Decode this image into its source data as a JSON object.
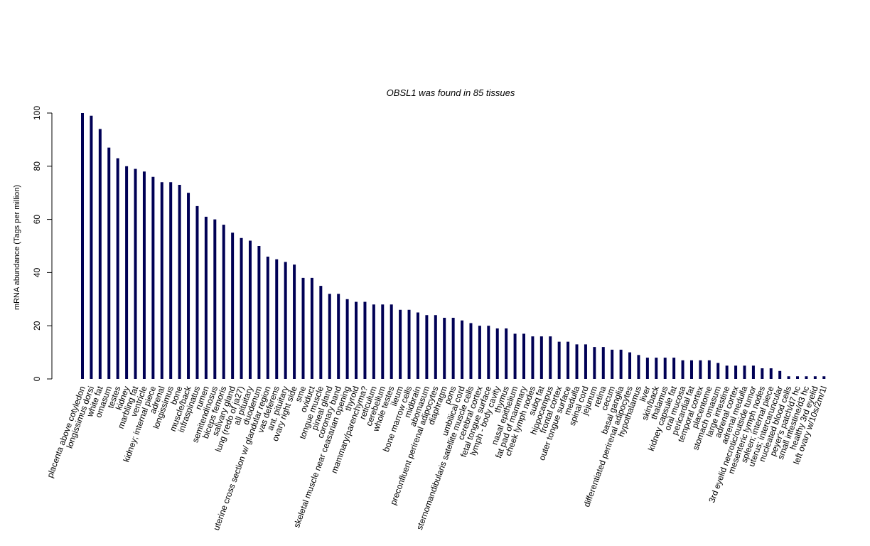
{
  "chart_data": {
    "type": "bar",
    "title": "OBSL1  was found in  85  tissues",
    "xlabel": "",
    "ylabel": "mRNA abundance (Tags per million)",
    "ylim": [
      0,
      100
    ],
    "yticks": [
      0,
      20,
      40,
      60,
      80,
      100
    ],
    "bar_color": "#000055",
    "categories": [
      "placenta above cotyledon",
      "longissimus dorsi",
      "white fat",
      "omasum",
      "testes",
      "kidney",
      "marbling fat",
      "ventricle",
      "kidney; internal piece",
      "adrenal",
      "longissimus",
      "bone",
      "muscle/back",
      "infraspinatus",
      "rumen",
      "semitendinosus",
      "biceps femoris",
      "salivary gland",
      "lung (redo of ja27)",
      "all pituitary",
      "duodenum",
      "uterine cross section w/ glandular region",
      "vas deferens",
      "ant. pituitary",
      "ovary right side",
      "sme",
      "oviduct",
      "tongue muscle",
      "pineal gland",
      "coronary band",
      "skeletal muscle near ceasarian opening",
      "thyroid",
      "mammary/parenchyma?",
      "reticulum",
      "cerebellum",
      "whole testes",
      "ileum",
      "bone marrow cells",
      "midbrain",
      "abomasum",
      "preconfluent perirenal adipocytes",
      "diaphragm",
      "pons",
      "umbilical cord",
      "sternomandibularis satellite muscle cells",
      "cerebral cortex",
      "fetal tongue surface",
      "lymph - body cavity",
      "thymus",
      "nasal epithelium",
      "fat pad of mammary",
      "cheek lymph nodes",
      "subq fat",
      "hippocampus",
      "frontal cortex",
      "outer tongue surface",
      "medulla",
      "spinal cord",
      "jejunum",
      "retina",
      "cecum",
      "basal ganglia",
      "differentiated perirenal adipocytes",
      "hypothalamus",
      "liver",
      "skin/back",
      "thalamus",
      "kidney capsule fat",
      "oral mucosa",
      "pericardial fat",
      "temporal cortex",
      "placentome",
      "stomach omasum",
      "large intestine",
      "adrenal cortex",
      "adrenal medulla",
      "3rd eyelid necrotic/outside tumor",
      "mesenteric lymph nodes",
      "spleen; internal piece",
      "uterus; intercaruncular",
      "nucleated blood cells",
      "peyer's patch/d7 hc",
      "small intestine/d3 hc",
      "healthy 3rd eyelid",
      "left ovary w/10s/2m/1l"
    ],
    "values": [
      100,
      99,
      94,
      87,
      83,
      80,
      79,
      78,
      76,
      74,
      74,
      73,
      70,
      65,
      61,
      60,
      58,
      55,
      53,
      52,
      50,
      46,
      45,
      44,
      43,
      38,
      38,
      35,
      32,
      32,
      30,
      29,
      29,
      28,
      28,
      28,
      26,
      26,
      25,
      24,
      24,
      23,
      23,
      22,
      21,
      20,
      20,
      19,
      19,
      17,
      17,
      16,
      16,
      16,
      14,
      14,
      13,
      13,
      12,
      12,
      11,
      11,
      10,
      9,
      8,
      8,
      8,
      8,
      7,
      7,
      7,
      7,
      6,
      5,
      5,
      5,
      5,
      4,
      4,
      3,
      1,
      1,
      1,
      1,
      1
    ]
  }
}
